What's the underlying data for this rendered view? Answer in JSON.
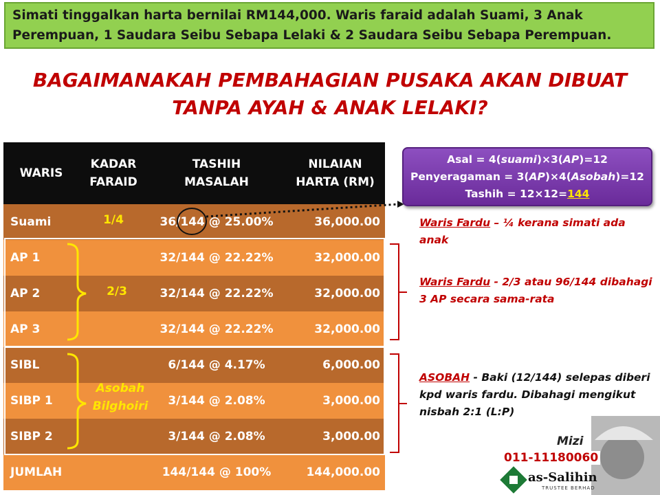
{
  "header": {
    "text": "Simati tinggalkan harta bernilai RM144,000. Waris faraid adalah Suami, 3 Anak Perempuan, 1 Saudara Seibu Sebapa Lelaki & 2 Saudara Seibu Sebapa Perempuan."
  },
  "title": [
    "BAGAIMANAKAH PEMBAHAGIAN PUSAKA AKAN DIBUAT",
    "TANPA AYAH & ANAK LELAKI?"
  ],
  "table": {
    "columns": [
      [
        "WARIS"
      ],
      [
        "KADAR",
        "FARAID"
      ],
      [
        "TASHIH",
        "MASALAH"
      ],
      [
        "NILAIAN",
        "HARTA (RM)"
      ]
    ],
    "rows": [
      [
        "Suami",
        "36/144 @ 25.00%",
        "36,000.00"
      ],
      [
        "AP 1",
        "32/144 @ 22.22%",
        "32,000.00"
      ],
      [
        "AP 2",
        "32/144 @ 22.22%",
        "32,000.00"
      ],
      [
        "AP 3",
        "32/144 @ 22.22%",
        "32,000.00"
      ],
      [
        "SIBL",
        "6/144 @ 4.17%",
        "6,000.00"
      ],
      [
        "SIBP 1",
        "3/144 @ 2.08%",
        "3,000.00"
      ],
      [
        "SIBP 2",
        "3/144 @ 2.08%",
        "3,000.00"
      ],
      [
        "JUMLAH",
        "144/144 @ 100%",
        "144,000.00"
      ]
    ],
    "kadar": [
      "1/4",
      "2/3",
      [
        "Asobah",
        "Bilghoiri"
      ]
    ]
  },
  "calculation": [
    [
      "Asal = 4(",
      "suami",
      ")×3(",
      "AP",
      ")=12"
    ],
    [
      "Penyeragaman = 3(",
      "AP",
      ")×4(",
      "Asobah",
      ")=12"
    ],
    [
      "Tashih = 12×12=",
      "144"
    ]
  ],
  "notes": [
    {
      "label": "Waris Fardu",
      "text": " – ¼ kerana simati ada anak"
    },
    {
      "label": "Waris Fardu",
      "text": " - 2/3 atau 96/144 dibahagi 3 AP secara sama-rata"
    },
    {
      "label": "ASOBAH",
      "text": " - Baki (12/144) selepas diberi kpd waris fardu. Dibahagi mengikut nisbah 2:1 (L:P)"
    }
  ],
  "logo": {
    "signature": "Mizi",
    "phone": "011-11180060",
    "name": "as-Salihin",
    "tagline": "TRUSTEE BERHAD"
  }
}
